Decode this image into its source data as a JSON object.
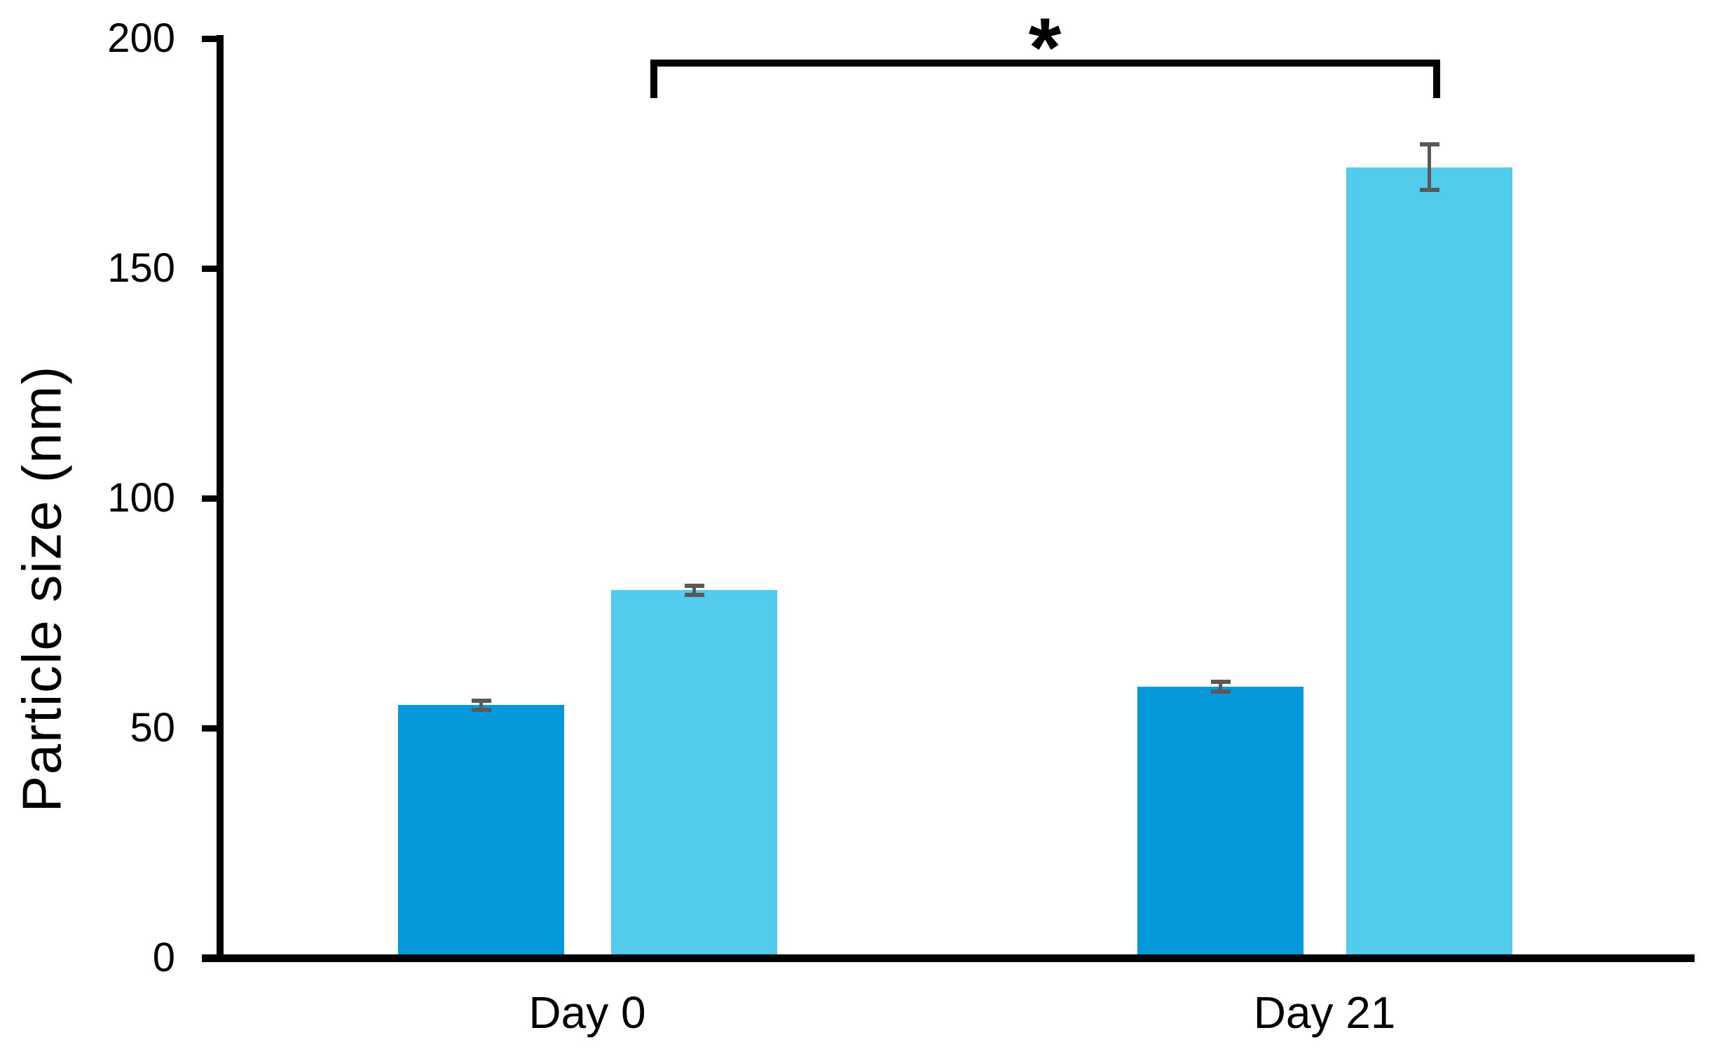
{
  "chart_data": {
    "type": "bar",
    "title": "",
    "xlabel": "",
    "ylabel": "Particle size (nm)",
    "ylim": [
      0,
      200
    ],
    "yticks": [
      0,
      50,
      100,
      150,
      200
    ],
    "categories": [
      "Day 0",
      "Day 21"
    ],
    "series": [
      {
        "name": "dark-blue-bars",
        "color": "#0599DB",
        "values": [
          55,
          59
        ],
        "errors": [
          1,
          1
        ]
      },
      {
        "name": "light-blue-bars",
        "color": "#53CBEC",
        "values": [
          80,
          172
        ],
        "errors": [
          1,
          5
        ]
      }
    ],
    "error_bar_color": "#595959",
    "axis_color": "#000000",
    "grid": false,
    "legend": "none",
    "significance": {
      "label": "*",
      "series": "light-blue-bars",
      "between": [
        "Day 0",
        "Day 21"
      ]
    }
  }
}
